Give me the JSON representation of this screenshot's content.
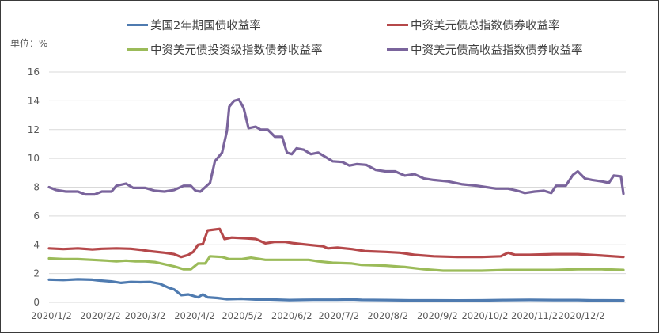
{
  "chart_data": {
    "type": "line",
    "title": "",
    "unit_label": "单位：%",
    "xlabel": "",
    "ylabel": "%",
    "ylim": [
      0,
      16
    ],
    "yticks": [
      0,
      2,
      4,
      6,
      8,
      10,
      12,
      14,
      16
    ],
    "grid": true,
    "legend_position": "top",
    "x_tick_labels": [
      "2020/1/2",
      "2020/2/2",
      "2020/3/2",
      "2020/4/2",
      "2020/5/2",
      "2020/6/2",
      "2020/7/2",
      "2020/8/2",
      "2020/9/2",
      "2020/10/2",
      "2020/11/2",
      "2020/12/2"
    ],
    "x_range": [
      "2020/1/2",
      "2020/12/31"
    ],
    "series": [
      {
        "name": "美国2年期国债收益率",
        "color": "#4f7bb0",
        "points": [
          [
            0,
            1.58
          ],
          [
            0.3,
            1.55
          ],
          [
            0.6,
            1.6
          ],
          [
            0.9,
            1.57
          ],
          [
            1.0,
            1.53
          ],
          [
            1.3,
            1.45
          ],
          [
            1.5,
            1.35
          ],
          [
            1.7,
            1.42
          ],
          [
            1.9,
            1.4
          ],
          [
            2.1,
            1.42
          ],
          [
            2.3,
            1.3
          ],
          [
            2.5,
            1.0
          ],
          [
            2.6,
            0.9
          ],
          [
            2.75,
            0.5
          ],
          [
            2.9,
            0.55
          ],
          [
            3.1,
            0.35
          ],
          [
            3.2,
            0.55
          ],
          [
            3.3,
            0.35
          ],
          [
            3.5,
            0.3
          ],
          [
            3.7,
            0.22
          ],
          [
            4.0,
            0.25
          ],
          [
            4.3,
            0.2
          ],
          [
            4.6,
            0.2
          ],
          [
            5.0,
            0.16
          ],
          [
            5.5,
            0.18
          ],
          [
            6.0,
            0.18
          ],
          [
            6.3,
            0.2
          ],
          [
            6.5,
            0.17
          ],
          [
            7.0,
            0.16
          ],
          [
            7.5,
            0.14
          ],
          [
            8.0,
            0.14
          ],
          [
            8.5,
            0.13
          ],
          [
            9.0,
            0.14
          ],
          [
            9.5,
            0.16
          ],
          [
            10.0,
            0.17
          ],
          [
            10.5,
            0.16
          ],
          [
            11.0,
            0.16
          ],
          [
            11.3,
            0.14
          ],
          [
            11.5,
            0.14
          ],
          [
            11.95,
            0.13
          ]
        ]
      },
      {
        "name": "中资美元债总指数债券收益率",
        "color": "#b5484a",
        "points": [
          [
            0,
            3.75
          ],
          [
            0.3,
            3.7
          ],
          [
            0.6,
            3.75
          ],
          [
            0.9,
            3.68
          ],
          [
            1.1,
            3.72
          ],
          [
            1.4,
            3.75
          ],
          [
            1.7,
            3.72
          ],
          [
            1.9,
            3.65
          ],
          [
            2.1,
            3.55
          ],
          [
            2.4,
            3.45
          ],
          [
            2.6,
            3.35
          ],
          [
            2.75,
            3.15
          ],
          [
            2.9,
            3.3
          ],
          [
            3.0,
            3.5
          ],
          [
            3.1,
            4.0
          ],
          [
            3.2,
            4.05
          ],
          [
            3.3,
            5.0
          ],
          [
            3.55,
            5.1
          ],
          [
            3.65,
            4.4
          ],
          [
            3.8,
            4.5
          ],
          [
            4.1,
            4.45
          ],
          [
            4.3,
            4.4
          ],
          [
            4.5,
            4.1
          ],
          [
            4.7,
            4.2
          ],
          [
            4.9,
            4.2
          ],
          [
            5.1,
            4.1
          ],
          [
            5.4,
            4.0
          ],
          [
            5.7,
            3.9
          ],
          [
            5.8,
            3.75
          ],
          [
            6.0,
            3.8
          ],
          [
            6.3,
            3.7
          ],
          [
            6.6,
            3.55
          ],
          [
            7.0,
            3.5
          ],
          [
            7.3,
            3.45
          ],
          [
            7.6,
            3.3
          ],
          [
            8.0,
            3.2
          ],
          [
            8.5,
            3.15
          ],
          [
            9.0,
            3.15
          ],
          [
            9.4,
            3.2
          ],
          [
            9.55,
            3.45
          ],
          [
            9.7,
            3.3
          ],
          [
            10.0,
            3.3
          ],
          [
            10.5,
            3.35
          ],
          [
            11.0,
            3.35
          ],
          [
            11.5,
            3.25
          ],
          [
            11.95,
            3.15
          ]
        ]
      },
      {
        "name": "中资美元债投资级指数债券收益率",
        "color": "#9bbb59",
        "points": [
          [
            0,
            3.05
          ],
          [
            0.3,
            3.0
          ],
          [
            0.6,
            3.0
          ],
          [
            0.9,
            2.95
          ],
          [
            1.2,
            2.9
          ],
          [
            1.4,
            2.85
          ],
          [
            1.6,
            2.9
          ],
          [
            1.8,
            2.85
          ],
          [
            2.0,
            2.85
          ],
          [
            2.2,
            2.8
          ],
          [
            2.4,
            2.65
          ],
          [
            2.6,
            2.5
          ],
          [
            2.8,
            2.3
          ],
          [
            2.95,
            2.3
          ],
          [
            3.1,
            2.7
          ],
          [
            3.25,
            2.7
          ],
          [
            3.35,
            3.2
          ],
          [
            3.6,
            3.15
          ],
          [
            3.75,
            3.0
          ],
          [
            4.0,
            3.0
          ],
          [
            4.2,
            3.1
          ],
          [
            4.5,
            2.95
          ],
          [
            4.8,
            2.95
          ],
          [
            5.1,
            2.95
          ],
          [
            5.4,
            2.95
          ],
          [
            5.6,
            2.85
          ],
          [
            5.9,
            2.75
          ],
          [
            6.3,
            2.7
          ],
          [
            6.5,
            2.6
          ],
          [
            7.0,
            2.55
          ],
          [
            7.4,
            2.45
          ],
          [
            7.8,
            2.3
          ],
          [
            8.2,
            2.2
          ],
          [
            8.6,
            2.2
          ],
          [
            9.0,
            2.2
          ],
          [
            9.5,
            2.25
          ],
          [
            10.0,
            2.25
          ],
          [
            10.5,
            2.25
          ],
          [
            11.0,
            2.3
          ],
          [
            11.5,
            2.3
          ],
          [
            11.95,
            2.25
          ]
        ]
      },
      {
        "name": "中资美元债高收益指数债券收益率",
        "color": "#7a649c",
        "points": [
          [
            0,
            8.0
          ],
          [
            0.15,
            7.8
          ],
          [
            0.35,
            7.7
          ],
          [
            0.6,
            7.7
          ],
          [
            0.75,
            7.5
          ],
          [
            0.95,
            7.5
          ],
          [
            1.1,
            7.7
          ],
          [
            1.3,
            7.7
          ],
          [
            1.4,
            8.1
          ],
          [
            1.6,
            8.25
          ],
          [
            1.75,
            7.95
          ],
          [
            2.0,
            7.95
          ],
          [
            2.2,
            7.75
          ],
          [
            2.4,
            7.7
          ],
          [
            2.6,
            7.8
          ],
          [
            2.8,
            8.1
          ],
          [
            2.95,
            8.1
          ],
          [
            3.05,
            7.75
          ],
          [
            3.15,
            7.7
          ],
          [
            3.35,
            8.3
          ],
          [
            3.45,
            9.8
          ],
          [
            3.6,
            10.4
          ],
          [
            3.7,
            11.9
          ],
          [
            3.75,
            13.6
          ],
          [
            3.85,
            14.0
          ],
          [
            3.95,
            14.1
          ],
          [
            4.05,
            13.5
          ],
          [
            4.15,
            12.1
          ],
          [
            4.3,
            12.2
          ],
          [
            4.4,
            12.0
          ],
          [
            4.55,
            12.0
          ],
          [
            4.7,
            11.5
          ],
          [
            4.85,
            11.5
          ],
          [
            4.95,
            10.4
          ],
          [
            5.05,
            10.3
          ],
          [
            5.15,
            10.7
          ],
          [
            5.3,
            10.6
          ],
          [
            5.45,
            10.3
          ],
          [
            5.6,
            10.4
          ],
          [
            5.75,
            10.1
          ],
          [
            5.9,
            9.8
          ],
          [
            6.1,
            9.75
          ],
          [
            6.25,
            9.5
          ],
          [
            6.4,
            9.6
          ],
          [
            6.6,
            9.55
          ],
          [
            6.8,
            9.2
          ],
          [
            7.0,
            9.1
          ],
          [
            7.2,
            9.1
          ],
          [
            7.4,
            8.8
          ],
          [
            7.6,
            8.9
          ],
          [
            7.8,
            8.6
          ],
          [
            8.0,
            8.5
          ],
          [
            8.3,
            8.4
          ],
          [
            8.6,
            8.2
          ],
          [
            8.9,
            8.1
          ],
          [
            9.1,
            8.0
          ],
          [
            9.3,
            7.9
          ],
          [
            9.55,
            7.9
          ],
          [
            9.75,
            7.75
          ],
          [
            9.9,
            7.6
          ],
          [
            10.1,
            7.7
          ],
          [
            10.3,
            7.75
          ],
          [
            10.45,
            7.6
          ],
          [
            10.55,
            8.1
          ],
          [
            10.75,
            8.1
          ],
          [
            10.9,
            8.85
          ],
          [
            11.0,
            9.1
          ],
          [
            11.15,
            8.6
          ],
          [
            11.3,
            8.5
          ],
          [
            11.5,
            8.4
          ],
          [
            11.65,
            8.3
          ],
          [
            11.75,
            8.8
          ],
          [
            11.9,
            8.75
          ],
          [
            11.95,
            7.55
          ]
        ]
      }
    ]
  }
}
